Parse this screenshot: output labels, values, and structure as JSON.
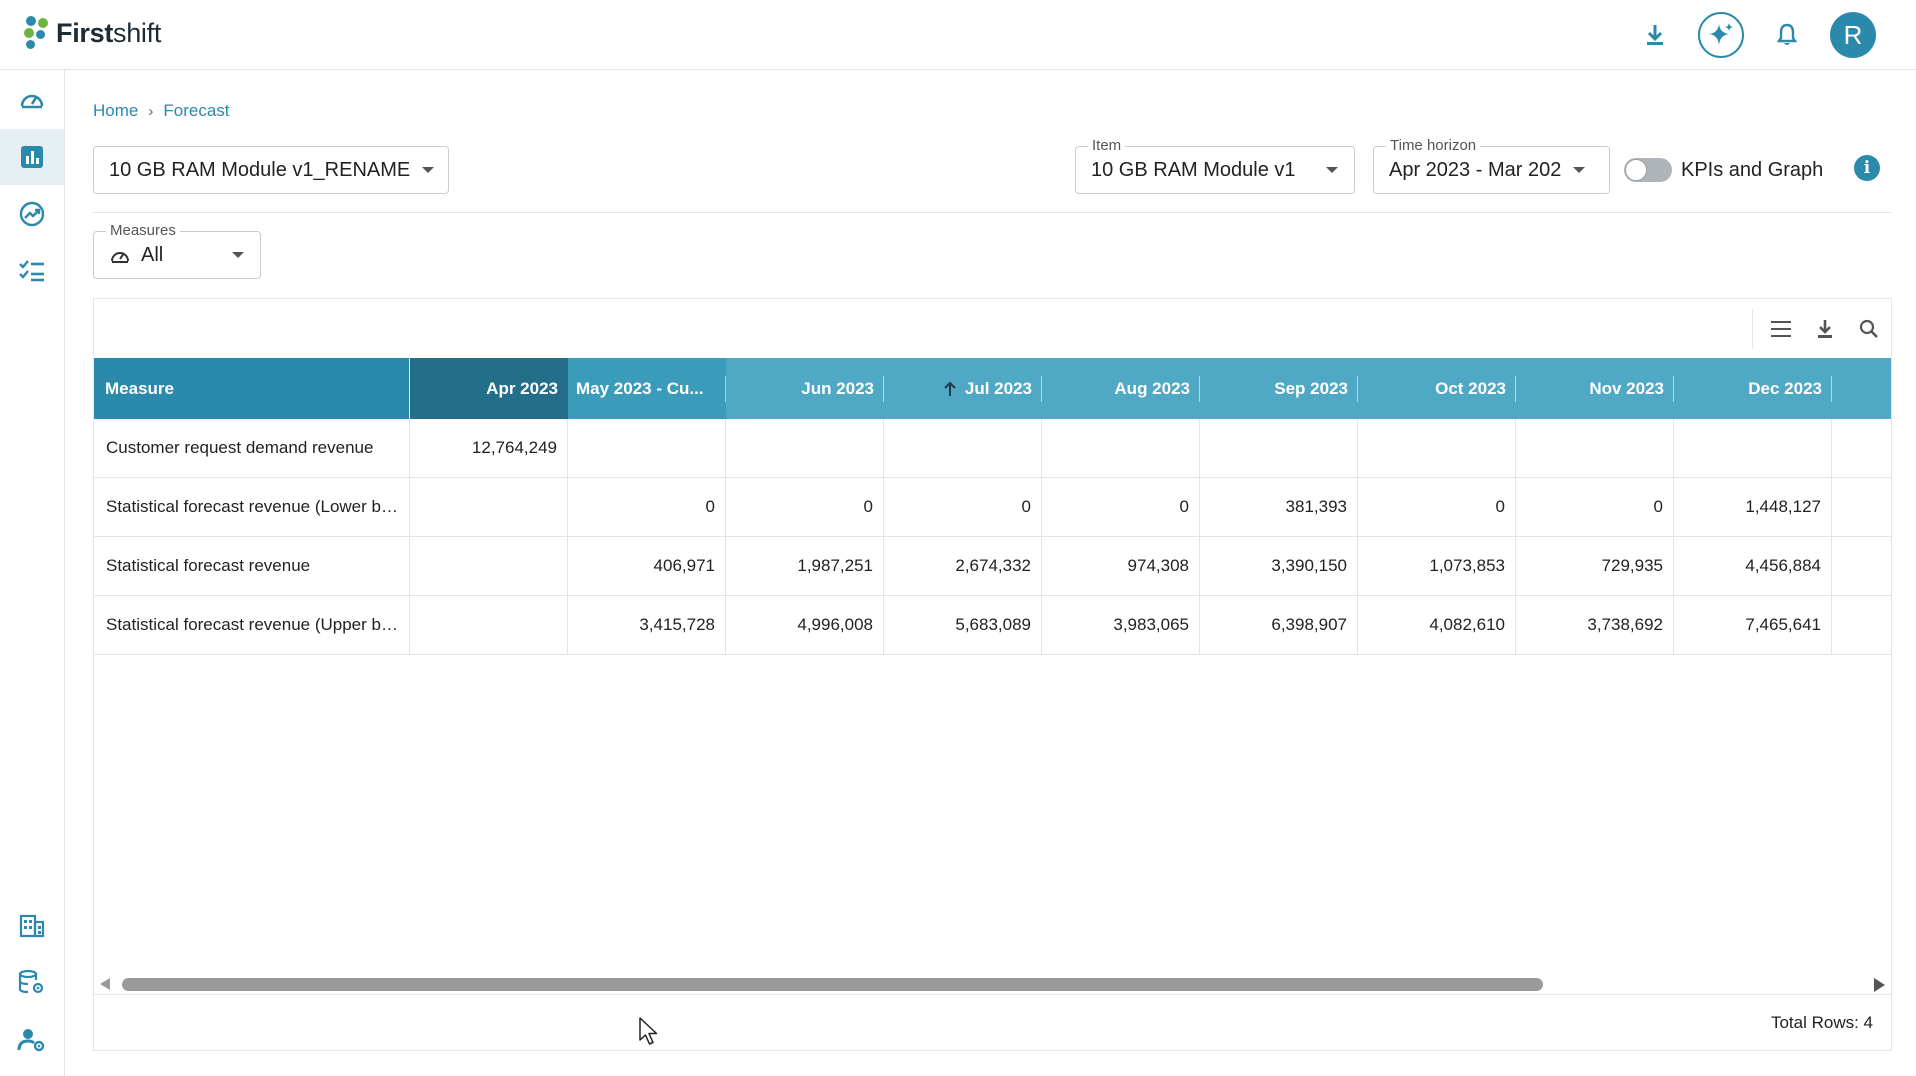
{
  "app": {
    "brand_bold": "First",
    "brand_light": "shift"
  },
  "header": {
    "avatar_initial": "R",
    "icons": [
      "download-icon",
      "ai-sparkle-icon",
      "bell-icon"
    ]
  },
  "sidebar": {
    "items": [
      {
        "name": "dashboard-icon",
        "active": false
      },
      {
        "name": "bar-chart-icon",
        "active": true
      },
      {
        "name": "trend-icon",
        "active": false
      },
      {
        "name": "checklist-icon",
        "active": false
      },
      {
        "name": "building-icon",
        "active": false
      },
      {
        "name": "database-settings-icon",
        "active": false
      },
      {
        "name": "user-settings-icon",
        "active": false
      }
    ]
  },
  "breadcrumb": {
    "home": "Home",
    "separator": "›",
    "current": "Forecast"
  },
  "filters": {
    "scenario_value": "10 GB RAM Module v1_RENAME",
    "item_label": "Item",
    "item_value": "10 GB RAM Module v1",
    "time_label": "Time horizon",
    "time_value": "Apr 2023 - Mar 202",
    "toggle_label": "KPIs and Graph",
    "toggle_on": false,
    "info": "i",
    "measures_label": "Measures",
    "measures_value": "All"
  },
  "grid": {
    "columns": [
      {
        "label": "Measure"
      },
      {
        "label": "Apr 2023"
      },
      {
        "label": "May 2023 - Cu..."
      },
      {
        "label": "Jun 2023"
      },
      {
        "label": "Jul 2023"
      },
      {
        "label": "Aug 2023"
      },
      {
        "label": "Sep 2023"
      },
      {
        "label": "Oct 2023"
      },
      {
        "label": "Nov 2023"
      },
      {
        "label": "Dec 2023"
      }
    ],
    "rows": [
      {
        "measure": "Customer request demand revenue",
        "values": [
          "12,764,249",
          "",
          "",
          "",
          "",
          "",
          "",
          "",
          ""
        ]
      },
      {
        "measure": "Statistical forecast revenue (Lower bound)",
        "values": [
          "",
          "0",
          "0",
          "0",
          "0",
          "381,393",
          "0",
          "0",
          "1,448,127"
        ]
      },
      {
        "measure": "Statistical forecast revenue",
        "values": [
          "",
          "406,971",
          "1,987,251",
          "2,674,332",
          "974,308",
          "3,390,150",
          "1,073,853",
          "729,935",
          "4,456,884"
        ]
      },
      {
        "measure": "Statistical forecast revenue (Upper bound)",
        "values": [
          "",
          "3,415,728",
          "4,996,008",
          "5,683,089",
          "3,983,065",
          "6,398,907",
          "4,082,610",
          "3,738,692",
          "7,465,641"
        ]
      }
    ],
    "footer": "Total Rows: 4"
  },
  "colors": {
    "accent": "#2b8aab",
    "header_bg": "#4fa8c4",
    "header_selected": "#236f8a"
  }
}
